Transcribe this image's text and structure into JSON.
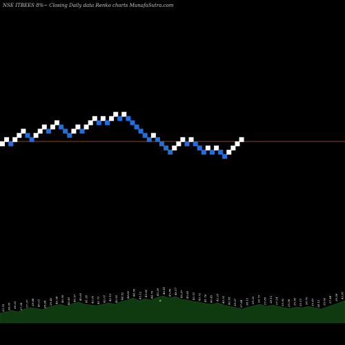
{
  "chart_data": {
    "type": "renko",
    "title": "NSE ITBEES 8%~  Closing Daily data  Renko  charts MunafaSutra.com",
    "colors": {
      "background": "#000000",
      "up_brick": "#ffffff",
      "down_brick": "#1f6fe0",
      "reference_line": "#8b4a1c",
      "volume_area": "#0f3a10",
      "volume_outline": "#1f5a1f",
      "label_text": "#ffffff"
    },
    "reference_level": 13.0,
    "bricks": [
      {
        "dir": "up",
        "level": 14
      },
      {
        "dir": "up",
        "level": 15
      },
      {
        "dir": "down",
        "level": 14
      },
      {
        "dir": "up",
        "level": 15
      },
      {
        "dir": "up",
        "level": 16
      },
      {
        "dir": "up",
        "level": 17
      },
      {
        "dir": "down",
        "level": 16
      },
      {
        "dir": "down",
        "level": 15
      },
      {
        "dir": "up",
        "level": 16
      },
      {
        "dir": "up",
        "level": 17
      },
      {
        "dir": "up",
        "level": 18
      },
      {
        "dir": "down",
        "level": 17
      },
      {
        "dir": "up",
        "level": 18
      },
      {
        "dir": "up",
        "level": 19
      },
      {
        "dir": "down",
        "level": 18
      },
      {
        "dir": "down",
        "level": 17
      },
      {
        "dir": "down",
        "level": 16
      },
      {
        "dir": "up",
        "level": 17
      },
      {
        "dir": "up",
        "level": 18
      },
      {
        "dir": "down",
        "level": 17
      },
      {
        "dir": "up",
        "level": 18
      },
      {
        "dir": "up",
        "level": 19
      },
      {
        "dir": "up",
        "level": 20
      },
      {
        "dir": "down",
        "level": 19
      },
      {
        "dir": "up",
        "level": 20
      },
      {
        "dir": "down",
        "level": 19
      },
      {
        "dir": "up",
        "level": 20
      },
      {
        "dir": "up",
        "level": 21
      },
      {
        "dir": "down",
        "level": 20
      },
      {
        "dir": "up",
        "level": 21
      },
      {
        "dir": "down",
        "level": 20
      },
      {
        "dir": "down",
        "level": 19
      },
      {
        "dir": "down",
        "level": 18
      },
      {
        "dir": "down",
        "level": 17
      },
      {
        "dir": "down",
        "level": 16
      },
      {
        "dir": "down",
        "level": 15
      },
      {
        "dir": "up",
        "level": 16
      },
      {
        "dir": "down",
        "level": 15
      },
      {
        "dir": "down",
        "level": 14
      },
      {
        "dir": "down",
        "level": 13
      },
      {
        "dir": "down",
        "level": 12
      },
      {
        "dir": "up",
        "level": 13
      },
      {
        "dir": "up",
        "level": 14
      },
      {
        "dir": "up",
        "level": 15
      },
      {
        "dir": "down",
        "level": 14
      },
      {
        "dir": "up",
        "level": 15
      },
      {
        "dir": "down",
        "level": 14
      },
      {
        "dir": "down",
        "level": 13
      },
      {
        "dir": "down",
        "level": 12
      },
      {
        "dir": "up",
        "level": 13
      },
      {
        "dir": "down",
        "level": 12
      },
      {
        "dir": "up",
        "level": 13
      },
      {
        "dir": "down",
        "level": 12
      },
      {
        "dir": "down",
        "level": 11
      },
      {
        "dir": "up",
        "level": 12
      },
      {
        "dir": "up",
        "level": 13
      },
      {
        "dir": "up",
        "level": 14
      },
      {
        "dir": "up",
        "level": 15
      }
    ],
    "volume_profile": [
      14,
      16,
      18,
      16,
      20,
      22,
      21,
      19,
      23,
      25,
      27,
      24,
      28,
      30,
      27,
      26,
      25,
      27,
      29,
      27,
      31,
      33,
      36,
      32,
      35,
      33,
      37,
      39,
      36,
      38,
      34,
      33,
      31,
      30,
      28,
      27,
      29,
      26,
      24,
      22,
      20,
      23,
      25,
      27,
      24,
      26,
      24,
      22,
      21,
      23,
      22,
      24,
      22,
      20,
      23,
      26,
      29,
      32
    ],
    "bar_labels": [
      "33.55",
      "36.09",
      "36.33",
      "37.38",
      "37.37",
      "39.88",
      "40.01",
      "38.64",
      "39.40",
      "40.38",
      "40.59",
      "40.41",
      "40.57",
      "40.63",
      "41.95",
      "42.05",
      "41.71",
      "42.01",
      "42.10",
      "42.93",
      "44.52",
      "44.62",
      "44.56",
      "45.12",
      "45.60",
      "44.79",
      "45.29",
      "46.41",
      "45.86",
      "46.17",
      "45.97",
      "45.85",
      "43.51",
      "43.72",
      "41.76",
      "40.45",
      "42.25",
      "40.52",
      "40.18",
      "39.07",
      "37.84",
      "38.15",
      "39.32",
      "39.73",
      "37.85",
      "38.13",
      "37.14",
      "35.92",
      "35.08",
      "35.90",
      "35.11",
      "36.70",
      "35.47",
      "34.12",
      "35.60",
      "37.44",
      "39.28",
      "42.81"
    ],
    "stray_mark": "8"
  }
}
